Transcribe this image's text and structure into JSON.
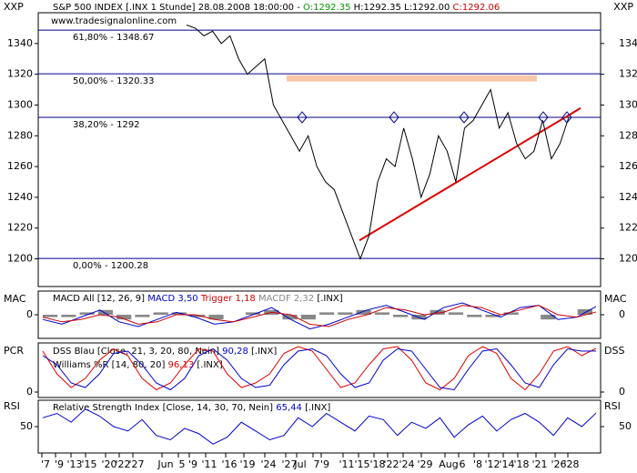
{
  "chart_data": [
    {
      "type": "line",
      "symbol": "XXP",
      "header": {
        "name": "S&P 500 INDEX [.INX  1 Stunde] 28.08.2008 18:00:00 -",
        "open": "O:1292.35",
        "highlow": "H:1292.35 L:1292.00",
        "close": "C:1292.06"
      },
      "source": "www.tradesignalonline.com",
      "series": [
        {
          "color": "#000000",
          "values": [
            1352,
            1350,
            1345,
            1348,
            1340,
            1345,
            1330,
            1320,
            1325,
            1330,
            1300,
            1290,
            1280,
            1270,
            1280,
            1260,
            1250,
            1245,
            1230,
            1215,
            1200,
            1215,
            1250,
            1265,
            1260,
            1285,
            1265,
            1240,
            1255,
            1280,
            1270,
            1250,
            1285,
            1290,
            1300,
            1310,
            1285,
            1295,
            1275,
            1265,
            1270,
            1290,
            1265,
            1275,
            1292
          ]
        }
      ],
      "fib_levels": [
        {
          "value": 1348.67,
          "label": "61,80% - 1348.67"
        },
        {
          "value": 1320.33,
          "label": "50,00% - 1320.33"
        },
        {
          "value": 1292,
          "label": "38,20% - 1292"
        },
        {
          "value": 1200.28,
          "label": "0,00% - 1200.28"
        }
      ],
      "zone": 1320,
      "trendline": [
        1212,
        1298
      ],
      "ylim": [
        1182,
        1360
      ],
      "yticks": [
        1200,
        1220,
        1240,
        1260,
        1280,
        1300,
        1320,
        1340
      ]
    },
    {
      "type": "macd",
      "left_label": "MAC",
      "right_label": "MAC",
      "legend": {
        "name": "MACD All [12, 26, 9]",
        "macd": "MACD 3,50",
        "trigger": "Trigger 1,18",
        "macdf": "MACDF 2,32",
        "symbol": "[.INX]"
      },
      "series": [
        {
          "name": "MACD",
          "color": "#0000cc",
          "values": [
            -2,
            -4,
            -1,
            2,
            -3,
            -5,
            -2,
            1,
            -1,
            -4,
            -3,
            0,
            3,
            -2,
            -6,
            -4,
            -1,
            2,
            4,
            1,
            -2,
            3,
            5,
            2,
            -1,
            3,
            4,
            -2,
            -1,
            3.5
          ]
        },
        {
          "name": "Trigger",
          "color": "#cc0000",
          "values": [
            -1,
            -3,
            -2,
            0,
            -1,
            -4,
            -3,
            0,
            0,
            -2,
            -3,
            -1,
            1,
            0,
            -4,
            -5,
            -2,
            0,
            3,
            2,
            0,
            1,
            4,
            3,
            0,
            2,
            4,
            0,
            -1,
            1.18
          ]
        },
        {
          "name": "MACDF",
          "color": "#888888",
          "values": [
            -1,
            -1,
            1,
            2,
            -2,
            -1,
            1,
            1,
            -1,
            -2,
            0,
            1,
            2,
            -2,
            -2,
            1,
            1,
            2,
            1,
            -1,
            -2,
            2,
            1,
            -1,
            -1,
            1,
            0,
            -2,
            0,
            2.32
          ]
        }
      ],
      "ylim": [
        -10,
        10
      ],
      "yticks": [
        0
      ]
    },
    {
      "type": "oscillator",
      "left_label": "PCR",
      "right_label": "DSS",
      "legend": [
        {
          "name": "DSS Blau [Close, 21, 3, 20, 80, Nein]",
          "value": "90,28",
          "symbol": "[.INX]"
        },
        {
          "name": "Williams %R [14, 80, 20]",
          "value": "96,13",
          "symbol": "[.INX]"
        }
      ],
      "series": [
        {
          "color": "#0000cc",
          "values": [
            80,
            60,
            20,
            10,
            40,
            85,
            90,
            60,
            20,
            5,
            30,
            80,
            95,
            70,
            30,
            10,
            15,
            60,
            90,
            95,
            80,
            40,
            10,
            20,
            70,
            95,
            90,
            50,
            10,
            5,
            50,
            90,
            95,
            60,
            20,
            10,
            60,
            95,
            90,
            90.28
          ]
        },
        {
          "color": "#dd0000",
          "values": [
            90,
            40,
            10,
            30,
            70,
            95,
            80,
            30,
            5,
            20,
            60,
            95,
            90,
            40,
            10,
            20,
            40,
            85,
            100,
            90,
            50,
            10,
            20,
            60,
            95,
            100,
            70,
            20,
            5,
            30,
            80,
            100,
            85,
            30,
            5,
            40,
            90,
            100,
            80,
            96.13
          ]
        }
      ],
      "ylim": [
        -12,
        108
      ],
      "yticks": [
        0
      ]
    },
    {
      "type": "line",
      "left_label": "RSI",
      "right_label": "RSI",
      "legend": {
        "name": "Relative Strength Index [Close, 14, 30, 70, Nein]",
        "value": "65,44",
        "symbol": "[.INX]"
      },
      "series": [
        {
          "color": "#0000cc",
          "values": [
            60,
            65,
            55,
            70,
            62,
            50,
            45,
            58,
            40,
            35,
            48,
            42,
            30,
            38,
            55,
            45,
            35,
            40,
            60,
            50,
            65,
            55,
            45,
            62,
            58,
            40,
            55,
            48,
            60,
            38,
            52,
            62,
            45,
            58,
            65,
            55,
            40,
            60,
            50,
            65.44
          ]
        }
      ],
      "ylim": [
        20,
        80
      ],
      "yticks": [
        50
      ],
      "xtick_labels": [
        "'7",
        "'9",
        "'13",
        "'15",
        "'20",
        "'22",
        "'27",
        "Jun",
        "5",
        "'9",
        "'11",
        "'16",
        "'19",
        "'24",
        "'27",
        "Jul",
        "7",
        "'9",
        "'11",
        "'15",
        "'18",
        "'22",
        "'24",
        "'29",
        "Aug",
        "6",
        "'8",
        "'12",
        "'14",
        "'18",
        "'21",
        "'26",
        "'28"
      ]
    }
  ]
}
